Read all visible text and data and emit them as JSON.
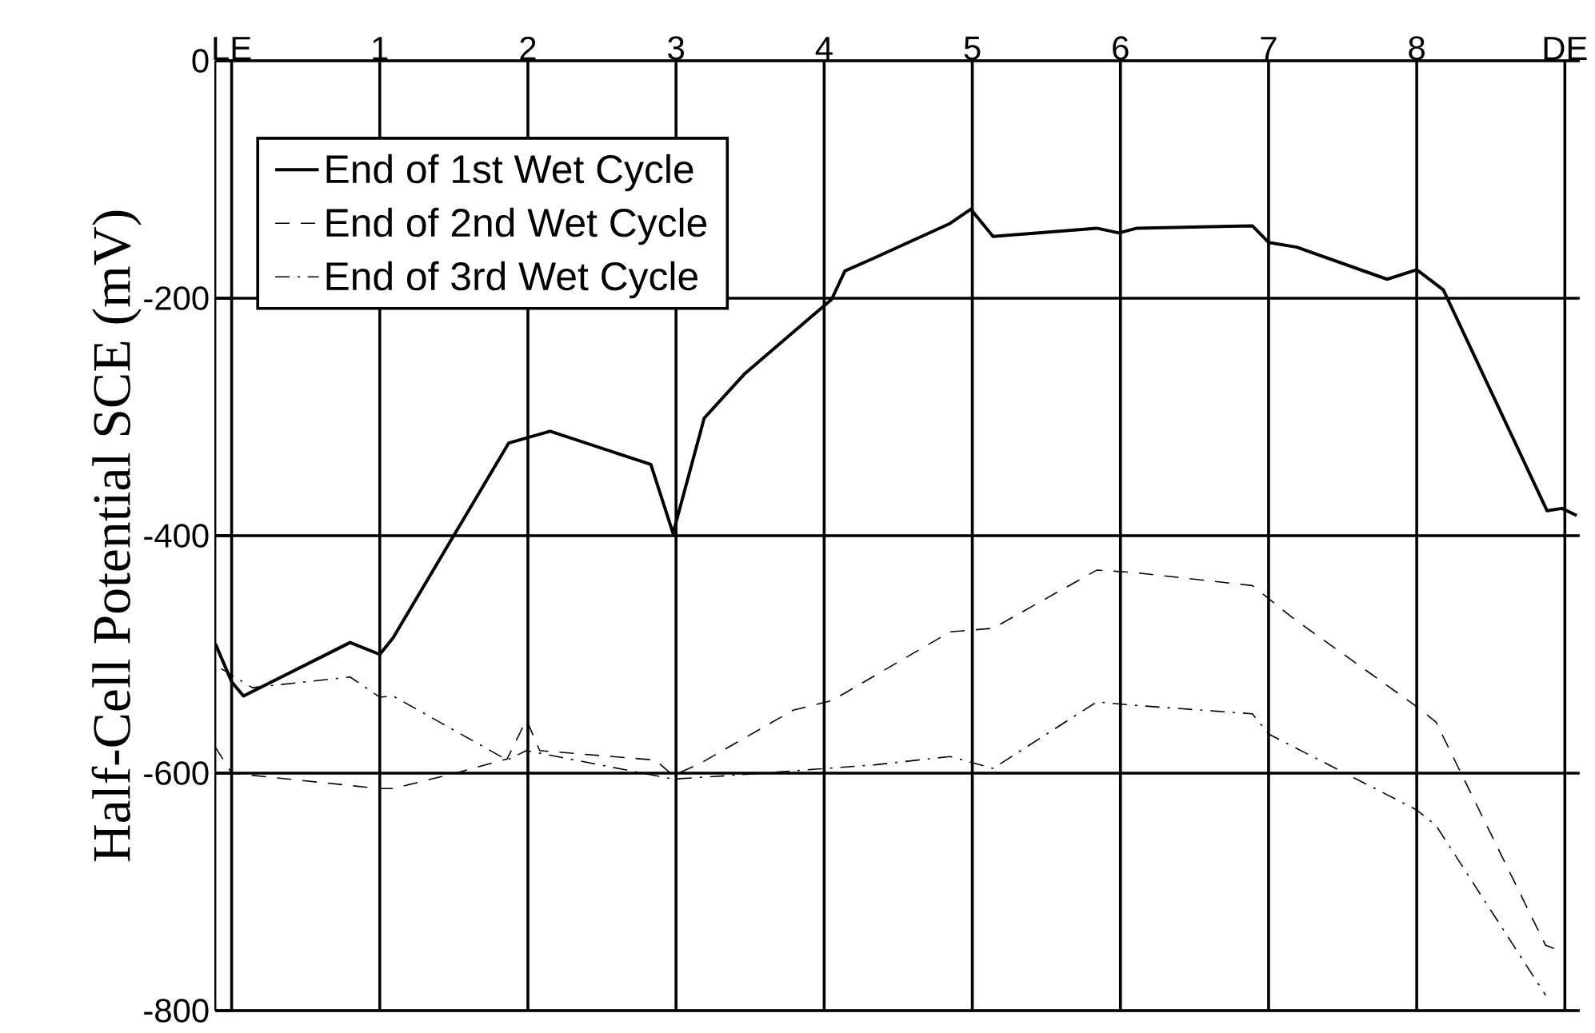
{
  "chart_data": {
    "type": "line",
    "ylabel": "Half-Cell Potential SCE (mV)",
    "xlim": [
      -0.11,
      9.1
    ],
    "ylim": [
      -800,
      0
    ],
    "xticks": [
      {
        "value": 0,
        "label": "LE"
      },
      1,
      2,
      3,
      4,
      5,
      6,
      7,
      8,
      {
        "value": 9,
        "label": "DE"
      }
    ],
    "yticks": [
      0,
      -200,
      -400,
      -600,
      -800
    ],
    "grid": true,
    "legend": "top left",
    "series": [
      {
        "name": "End of 1st Wet Cycle",
        "color": "#000000",
        "line_style": "solid",
        "x": [
          -0.11,
          0,
          0.08,
          0.8,
          1,
          1.09,
          1.87,
          2.15,
          2.83,
          2.98,
          3.19,
          3.46,
          4.05,
          4.14,
          4.34,
          4.85,
          4.99,
          5.14,
          5.84,
          5.99,
          6.11,
          6.89,
          7,
          7.19,
          7.8,
          8,
          8.18,
          8.88,
          8.98,
          9.08
        ],
        "values": [
          -491,
          -523,
          -535,
          -490,
          -500,
          -486,
          -322,
          -312,
          -340,
          -398,
          -301,
          -264,
          -201,
          -177,
          -166,
          -137,
          -125,
          -148,
          -141,
          -145,
          -141,
          -139,
          -153,
          -157,
          -184,
          -176,
          -193,
          -379,
          -377,
          -383
        ]
      },
      {
        "name": "End of 2nd Wet Cycle",
        "color": "#000000",
        "line_style": "dashed",
        "x": [
          -0.11,
          0,
          1,
          1.09,
          1.51,
          1.86,
          1.99,
          2.08,
          2.86,
          2.98,
          3.16,
          3.79,
          4.05,
          4.34,
          4.85,
          5.14,
          5.84,
          6.09,
          6.89,
          7.16,
          8,
          8.13,
          8.87,
          8.98
        ],
        "values": [
          -578,
          -600,
          -613,
          -613,
          -600,
          -588,
          -555,
          -581,
          -589,
          -602,
          -592,
          -547,
          -539,
          -518,
          -481,
          -478,
          -429,
          -431,
          -442,
          -469,
          -544,
          -557,
          -745,
          -750
        ]
      },
      {
        "name": "End of 3rd Wet Cycle",
        "color": "#000000",
        "line_style": "dashdot",
        "x": [
          -0.07,
          0.14,
          0.8,
          1,
          1.09,
          1.86,
          1.99,
          2.98,
          3.36,
          4.34,
          4.85,
          5.14,
          5.84,
          6.11,
          6.89,
          7,
          8,
          8.13,
          8.87
        ],
        "values": [
          -512,
          -528,
          -519,
          -536,
          -535,
          -589,
          -581,
          -605,
          -602,
          -593,
          -586,
          -596,
          -540,
          -543,
          -550,
          -567,
          -631,
          -644,
          -787
        ]
      }
    ]
  }
}
